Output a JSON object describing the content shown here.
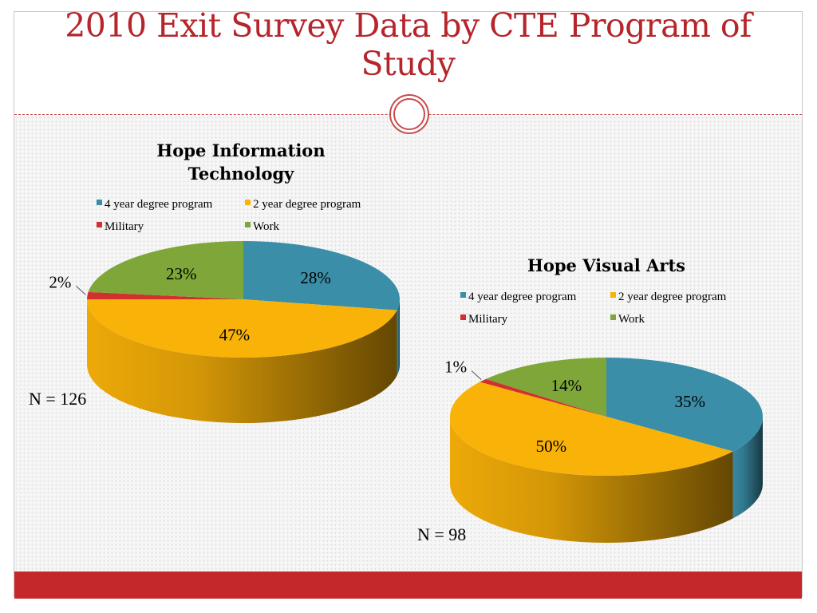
{
  "slide": {
    "title": "2010 Exit Survey Data by CTE Program of Study"
  },
  "colors": {
    "title": "#b5252b",
    "bar": "#c4282b",
    "series": [
      "#3a8ea8",
      "#f9b208",
      "#d1312c",
      "#7ea638"
    ]
  },
  "chart_data": [
    {
      "type": "pie",
      "title": "Hope Information Technology",
      "categories": [
        "4 year degree program",
        "2 year degree program",
        "Military",
        "Work"
      ],
      "values": [
        28,
        47,
        2,
        23
      ],
      "labels": [
        "28%",
        "47%",
        "2%",
        "23%"
      ],
      "legend": "top",
      "n_label": "N = 126"
    },
    {
      "type": "pie",
      "title": "Hope Visual Arts",
      "categories": [
        "4 year degree program",
        "2 year degree program",
        "Military",
        "Work"
      ],
      "values": [
        35,
        50,
        1,
        14
      ],
      "labels": [
        "35%",
        "50%",
        "1%",
        "14%"
      ],
      "legend": "top",
      "n_label": "N = 98"
    }
  ]
}
